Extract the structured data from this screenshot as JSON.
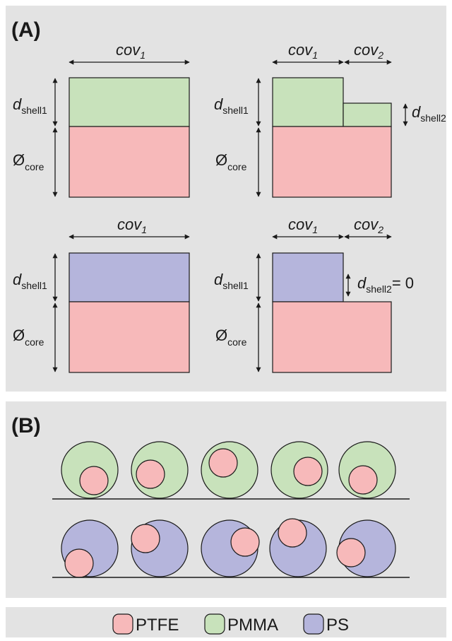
{
  "panel_a": {
    "label": "(A)",
    "cov1": "cov",
    "cov2": "cov",
    "sub1": "1",
    "sub2": "2",
    "d": "d",
    "shell1": "shell1",
    "shell2": "shell2",
    "phi": "Ø",
    "core": "core",
    "zero_suffix": "= 0"
  },
  "panel_b": {
    "label": "(B)"
  },
  "legend": {
    "ptfe": "PTFE",
    "pmma": "PMMA",
    "ps": "PS"
  },
  "colors": {
    "ptfe": "#f7b9ba",
    "pmma": "#c8e2bb",
    "ps": "#b5b5dc",
    "panel_bg": "#e3e3e3",
    "stroke": "#1a1a1a"
  }
}
